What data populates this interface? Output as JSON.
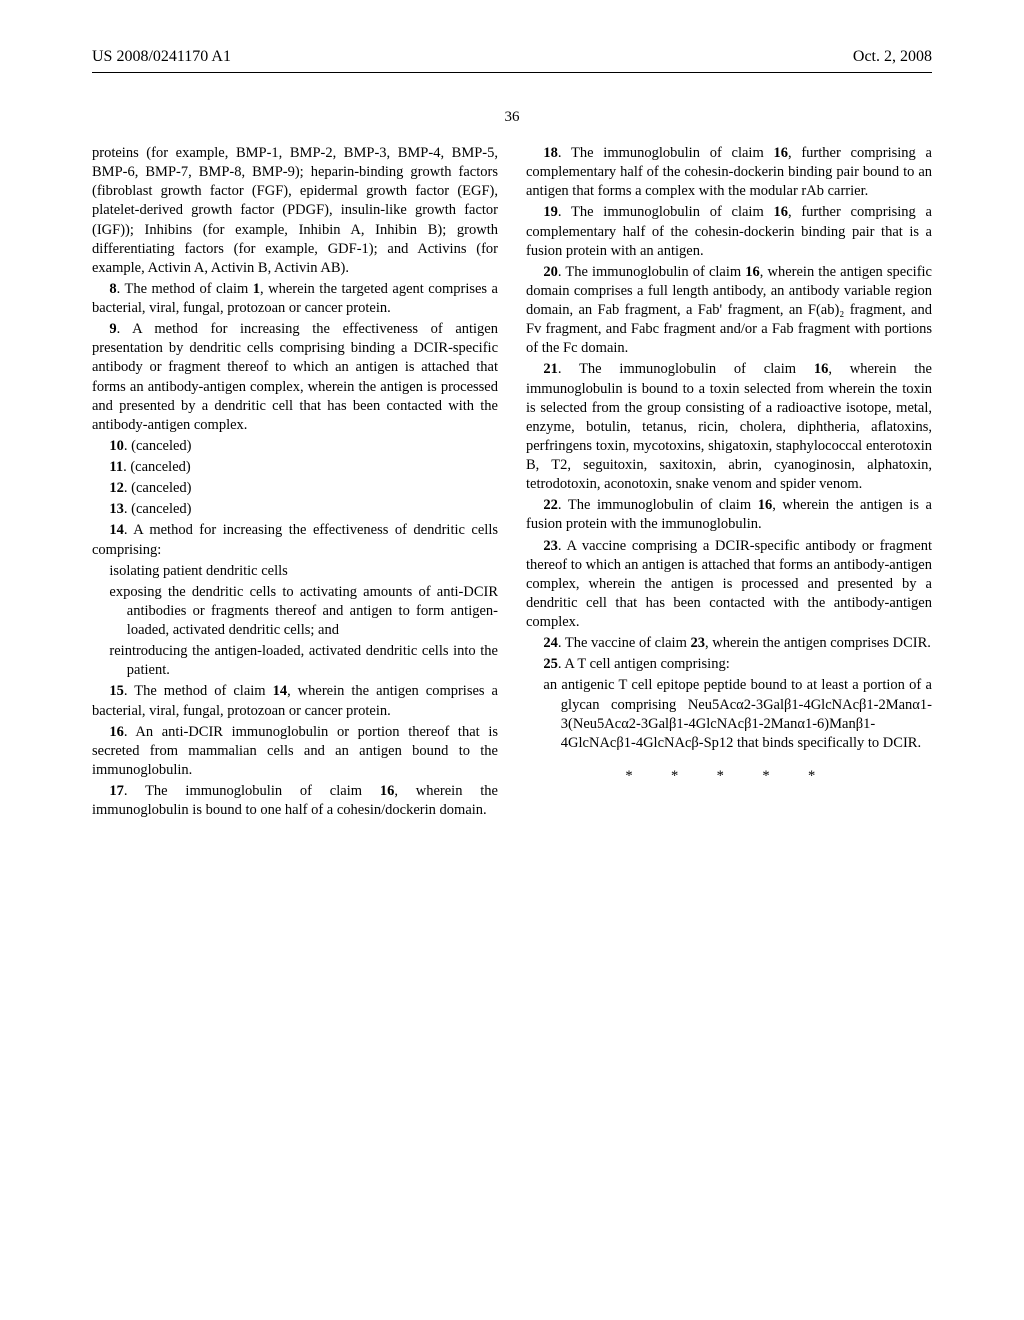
{
  "header": {
    "pub_number": "US 2008/0241170 A1",
    "date": "Oct. 2, 2008"
  },
  "page_number": "36",
  "body": {
    "p0": "proteins (for example, BMP-1, BMP-2, BMP-3, BMP-4, BMP-5, BMP-6, BMP-7, BMP-8, BMP-9); heparin-binding growth factors (fibroblast growth factor (FGF), epidermal growth factor (EGF), platelet-derived growth factor (PDGF), insulin-like growth factor (IGF)); Inhibins (for example, Inhibin A, Inhibin B); growth differentiating factors (for example, GDF-1); and Activins (for example, Activin A, Activin B, Activin AB).",
    "c8_label": "8",
    "c8": ". The method of claim ",
    "c8_ref": "1",
    "c8b": ", wherein the targeted agent comprises a bacterial, viral, fungal, protozoan or cancer protein.",
    "c9_label": "9",
    "c9": ". A method for increasing the effectiveness of antigen presentation by dendritic cells comprising binding a DCIR-specific antibody or fragment thereof to which an antigen is attached that forms an antibody-antigen complex, wherein the antigen is processed and presented by a dendritic cell that has been contacted with the antibody-antigen complex.",
    "c10_label": "10",
    "c10": ". (canceled)",
    "c11_label": "11",
    "c11": ". (canceled)",
    "c12_label": "12",
    "c12": ". (canceled)",
    "c13_label": "13",
    "c13": ". (canceled)",
    "c14_label": "14",
    "c14": ". A method for increasing the effectiveness of dendritic cells comprising:",
    "c14_s1": "isolating patient dendritic cells",
    "c14_s2": "exposing the dendritic cells to activating amounts of anti-DCIR antibodies or fragments thereof and antigen to form antigen-loaded, activated dendritic cells; and",
    "c14_s3": "reintroducing the antigen-loaded, activated dendritic cells into the patient.",
    "c15_label": "15",
    "c15": ". The method of claim ",
    "c15_ref": "14",
    "c15b": ", wherein the antigen comprises a bacterial, viral, fungal, protozoan or cancer protein.",
    "c16_label": "16",
    "c16": ". An anti-DCIR immunoglobulin or portion thereof that is secreted from mammalian cells and an antigen bound to the immunoglobulin.",
    "c17_label": "17",
    "c17": ". The immunoglobulin of claim ",
    "c17_ref": "16",
    "c17b": ", wherein the immunoglobulin is bound to one half of a cohesin/dockerin domain.",
    "c18_label": "18",
    "c18": ". The immunoglobulin of claim ",
    "c18_ref": "16",
    "c18b": ", further comprising a complementary half of the cohesin-dockerin binding pair bound to an antigen that forms a complex with the modular rAb carrier.",
    "c19_label": "19",
    "c19": ". The immunoglobulin of claim ",
    "c19_ref": "16",
    "c19b": ", further comprising a complementary half of the cohesin-dockerin binding pair that is a fusion protein with an antigen.",
    "c20_label": "20",
    "c20": ". The immunoglobulin of claim ",
    "c20_ref": "16",
    "c20b": ", wherein the antigen specific domain comprises a full length antibody, an antibody variable region domain, an Fab fragment, a Fab' fragment, an F(ab)₂ fragment, and Fv fragment, and Fabc fragment and/or a Fab fragment with portions of the Fc domain.",
    "c21_label": "21",
    "c21": ". The immunoglobulin of claim ",
    "c21_ref": "16",
    "c21b": ", wherein the immunoglobulin is bound to a toxin selected from wherein the toxin is selected from the group consisting of a radioactive isotope, metal, enzyme, botulin, tetanus, ricin, cholera, diphtheria, aflatoxins, perfringens toxin, mycotoxins, shigatoxin, staphylococcal enterotoxin B, T2, seguitoxin, saxitoxin, abrin, cyanoginosin, alphatoxin, tetrodotoxin, aconotoxin, snake venom and spider venom.",
    "c22_label": "22",
    "c22": ". The immunoglobulin of claim ",
    "c22_ref": "16",
    "c22b": ", wherein the antigen is a fusion protein with the immunoglobulin.",
    "c23_label": "23",
    "c23": ". A vaccine comprising a DCIR-specific antibody or fragment thereof to which an antigen is attached that forms an antibody-antigen complex, wherein the antigen is processed and presented by a dendritic cell that has been contacted with the antibody-antigen complex.",
    "c24_label": "24",
    "c24": ". The vaccine of claim ",
    "c24_ref": "23",
    "c24b": ", wherein the antigen comprises DCIR.",
    "c25_label": "25",
    "c25": ". A T cell antigen comprising:",
    "c25_s1": "an antigenic T cell epitope peptide bound to at least a portion of a glycan comprising Neu5Acα2-3Galβ1-4GlcNAcβ1-2Manα1-3(Neu5Acα2-3Galβ1-4GlcNAcβ1-2Manα1-6)Manβ1-4GlcNAcβ1-4GlcNAcβ-Sp12 that binds specifically to DCIR.",
    "stars": "* * * * *"
  }
}
